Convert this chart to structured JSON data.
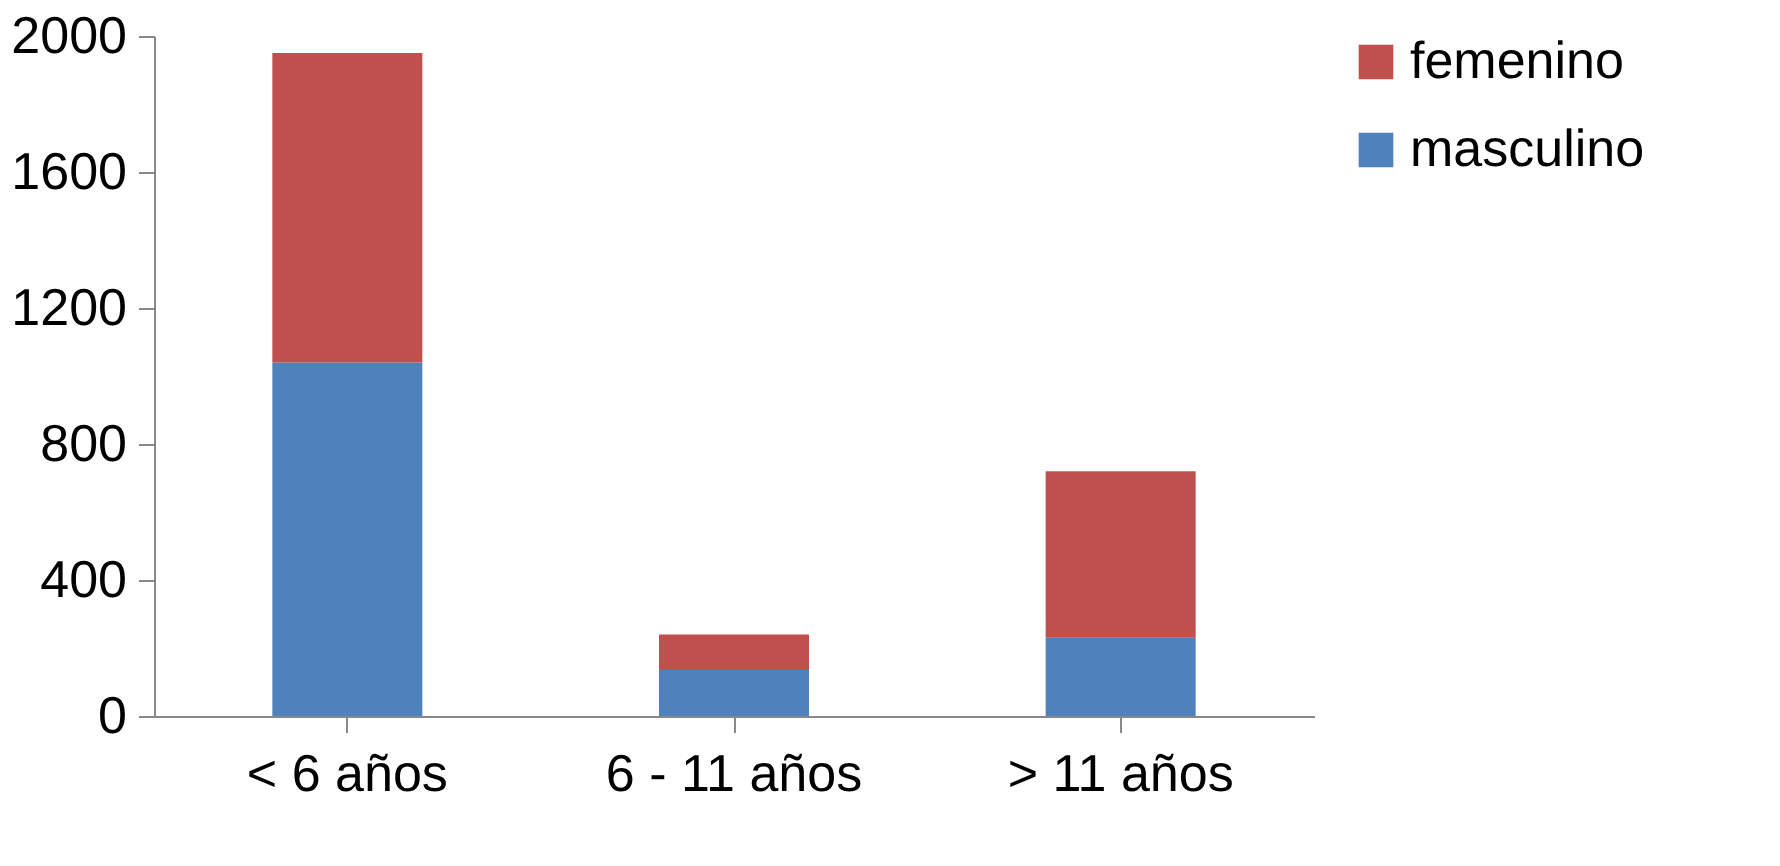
{
  "chart_data": {
    "type": "bar",
    "stacked": true,
    "categories": [
      "< 6 años",
      "6 - 11 años",
      "> 11 años"
    ],
    "series": [
      {
        "name": "masculino",
        "color": "#4f81bd",
        "values": [
          1040,
          135,
          230
        ]
      },
      {
        "name": "femenino",
        "color": "#c0504d",
        "values": [
          910,
          105,
          490
        ]
      }
    ],
    "ylim": [
      0,
      2000
    ],
    "yticks": [
      0,
      400,
      800,
      1200,
      1600,
      2000
    ],
    "grid": false,
    "legend": "right"
  }
}
